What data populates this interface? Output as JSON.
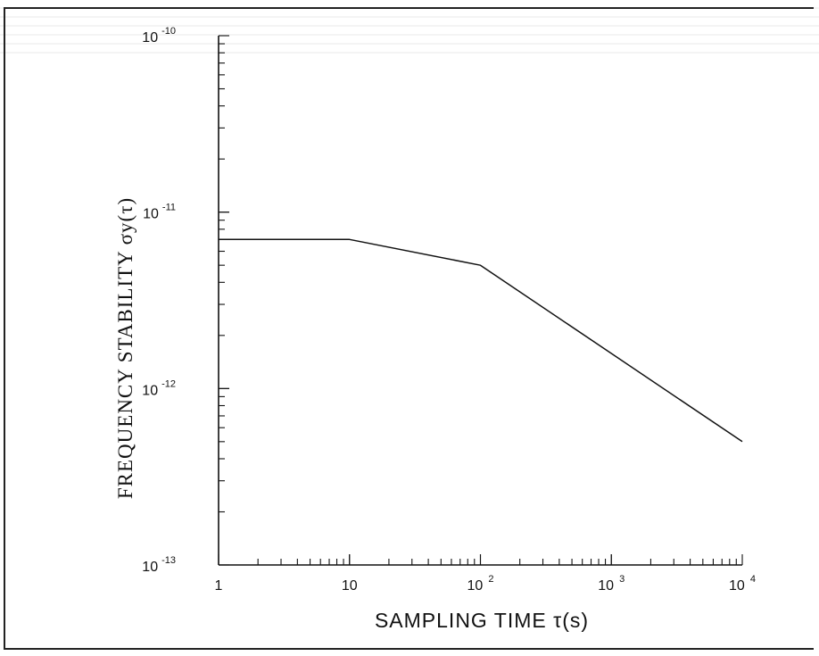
{
  "chart_data": {
    "type": "line",
    "xscale": "log",
    "yscale": "log",
    "xlim": [
      1,
      10000
    ],
    "ylim": [
      1e-13,
      1e-10
    ],
    "grid": false,
    "legend": "none",
    "xlabel": "SAMPLING TIME τ(s)",
    "ylabel": "FREQUENCY STABILITY σy(τ)",
    "x_ticks": [
      {
        "value": 1,
        "base": "1",
        "exp": ""
      },
      {
        "value": 10,
        "base": "10",
        "exp": ""
      },
      {
        "value": 100,
        "base": "10",
        "exp": "2"
      },
      {
        "value": 1000,
        "base": "10",
        "exp": "3"
      },
      {
        "value": 10000,
        "base": "10",
        "exp": "4"
      }
    ],
    "y_ticks": [
      {
        "value": 1e-10,
        "base": "10",
        "exp": "-10"
      },
      {
        "value": 1e-11,
        "base": "10",
        "exp": "-11"
      },
      {
        "value": 1e-12,
        "base": "10",
        "exp": "-12"
      },
      {
        "value": 1e-13,
        "base": "10",
        "exp": "-13"
      }
    ],
    "series": [
      {
        "x": [
          1,
          10,
          100,
          10000
        ],
        "y": [
          7e-12,
          7e-12,
          5e-12,
          5e-13
        ]
      }
    ]
  },
  "colors": {
    "ink": "#111111"
  }
}
